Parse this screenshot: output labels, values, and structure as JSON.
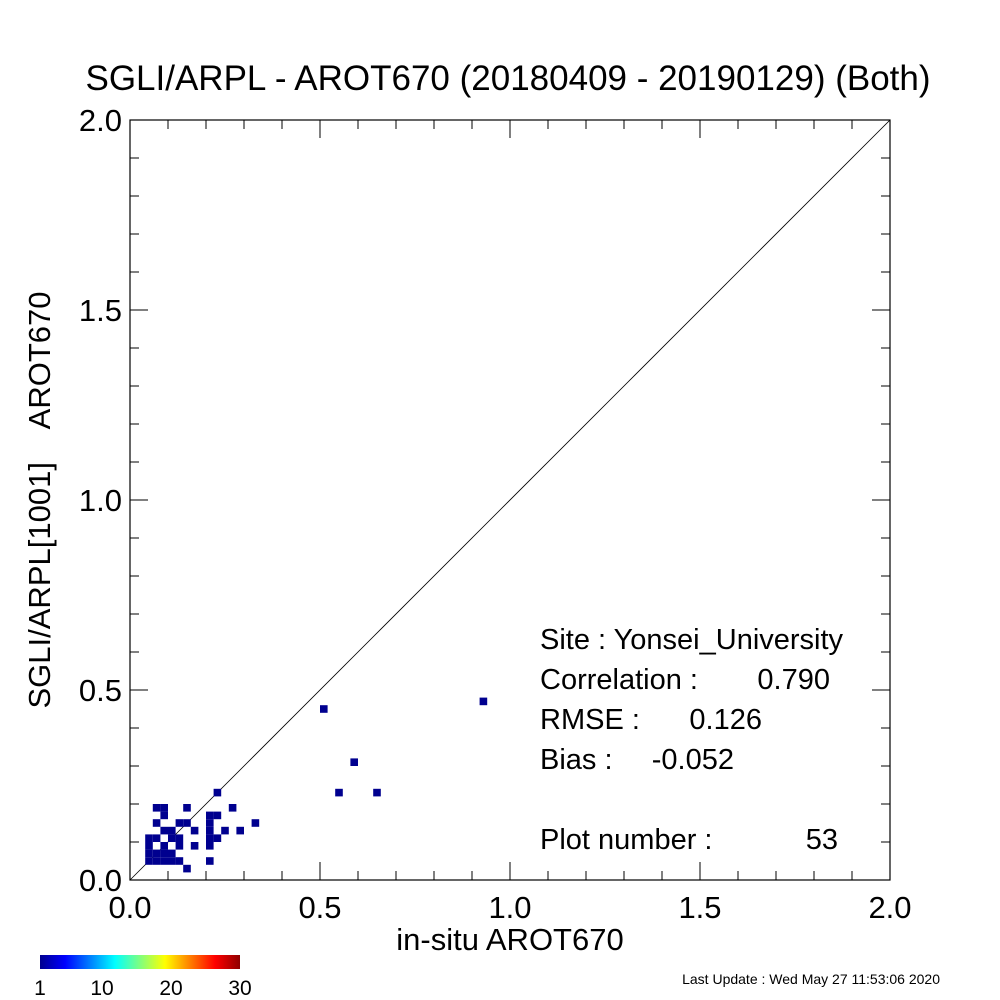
{
  "chart_data": {
    "type": "scatter",
    "title": "SGLI/ARPL - AROT670 (20180409 - 20190129) (Both)",
    "xlabel": "in-situ AROT670",
    "ylabel": "SGLI/ARPL[1001]    AROT670",
    "xlim": [
      0.0,
      2.0
    ],
    "ylim": [
      0.0,
      2.0
    ],
    "x_ticks": [
      "0.0",
      "0.5",
      "1.0",
      "1.5",
      "2.0"
    ],
    "y_ticks": [
      "0.0",
      "0.5",
      "1.0",
      "1.5",
      "2.0"
    ],
    "reference_line": "1:1",
    "density_colorbar": {
      "ticks": [
        "1",
        "10",
        "20",
        "30"
      ],
      "min": 1,
      "max": 30
    },
    "points": [
      {
        "x": 0.05,
        "y": 0.05
      },
      {
        "x": 0.07,
        "y": 0.05
      },
      {
        "x": 0.05,
        "y": 0.07
      },
      {
        "x": 0.09,
        "y": 0.05
      },
      {
        "x": 0.11,
        "y": 0.05
      },
      {
        "x": 0.13,
        "y": 0.05
      },
      {
        "x": 0.07,
        "y": 0.07
      },
      {
        "x": 0.09,
        "y": 0.07
      },
      {
        "x": 0.11,
        "y": 0.07
      },
      {
        "x": 0.05,
        "y": 0.09
      },
      {
        "x": 0.09,
        "y": 0.09
      },
      {
        "x": 0.13,
        "y": 0.09
      },
      {
        "x": 0.15,
        "y": 0.03
      },
      {
        "x": 0.05,
        "y": 0.11
      },
      {
        "x": 0.07,
        "y": 0.11
      },
      {
        "x": 0.11,
        "y": 0.11
      },
      {
        "x": 0.13,
        "y": 0.11
      },
      {
        "x": 0.11,
        "y": 0.13
      },
      {
        "x": 0.09,
        "y": 0.13
      },
      {
        "x": 0.07,
        "y": 0.15
      },
      {
        "x": 0.13,
        "y": 0.15
      },
      {
        "x": 0.15,
        "y": 0.15
      },
      {
        "x": 0.17,
        "y": 0.13
      },
      {
        "x": 0.07,
        "y": 0.19
      },
      {
        "x": 0.09,
        "y": 0.19
      },
      {
        "x": 0.09,
        "y": 0.17
      },
      {
        "x": 0.15,
        "y": 0.19
      },
      {
        "x": 0.17,
        "y": 0.09
      },
      {
        "x": 0.21,
        "y": 0.05
      },
      {
        "x": 0.21,
        "y": 0.09
      },
      {
        "x": 0.21,
        "y": 0.11
      },
      {
        "x": 0.23,
        "y": 0.11
      },
      {
        "x": 0.21,
        "y": 0.13
      },
      {
        "x": 0.21,
        "y": 0.15
      },
      {
        "x": 0.21,
        "y": 0.17
      },
      {
        "x": 0.23,
        "y": 0.17
      },
      {
        "x": 0.25,
        "y": 0.13
      },
      {
        "x": 0.27,
        "y": 0.19
      },
      {
        "x": 0.29,
        "y": 0.13
      },
      {
        "x": 0.33,
        "y": 0.15
      },
      {
        "x": 0.23,
        "y": 0.23
      },
      {
        "x": 0.51,
        "y": 0.45
      },
      {
        "x": 0.59,
        "y": 0.31
      },
      {
        "x": 0.55,
        "y": 0.23
      },
      {
        "x": 0.65,
        "y": 0.23
      },
      {
        "x": 0.93,
        "y": 0.47
      }
    ],
    "stats": {
      "site_label": "Site : Yonsei_University",
      "correlation_label": "Correlation :",
      "correlation_value": "0.790",
      "rmse_label": "RMSE :",
      "rmse_value": "0.126",
      "bias_label": "Bias :",
      "bias_value": "-0.052",
      "plot_number_label": "Plot number :",
      "plot_number_value": "53"
    },
    "marker_color": "#00008f",
    "colors": {
      "axis": "#000000",
      "background": "#ffffff",
      "colorbar": [
        "#00008f",
        "#0000ff",
        "#007fff",
        "#00ffff",
        "#7fff7f",
        "#ffff00",
        "#ff7f00",
        "#ff0000",
        "#8f0000"
      ]
    }
  },
  "footer": {
    "last_update": "Last Update : Wed May 27 11:53:06 2020"
  }
}
